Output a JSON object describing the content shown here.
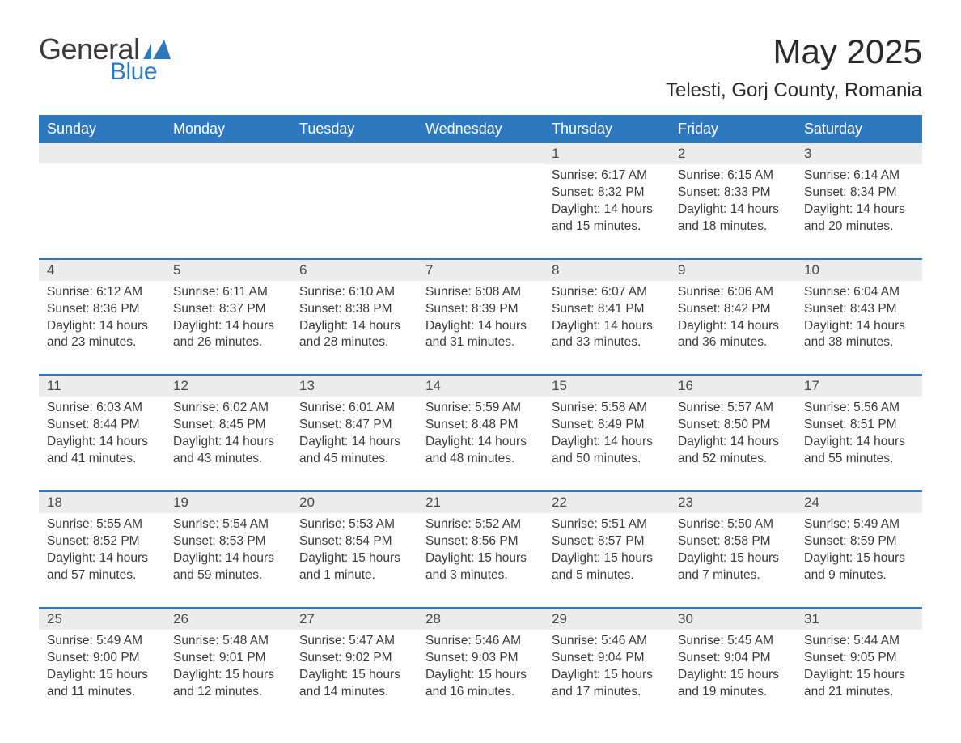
{
  "logo": {
    "text1": "General",
    "text2": "Blue",
    "color_general": "#3a3a3a",
    "color_blue": "#2e78c0",
    "tri_color": "#2e78c0"
  },
  "title": "May 2025",
  "location": "Telesti, Gorj County, Romania",
  "colors": {
    "header_bg": "#2e78c0",
    "header_text": "#ffffff",
    "row_accent": "#2e78c0",
    "daynum_bg": "#ececec",
    "text": "#3a3a3a",
    "bg": "#ffffff"
  },
  "fonts": {
    "title_size": 42,
    "location_size": 24,
    "header_size": 18,
    "daynum_size": 17,
    "body_size": 15.5
  },
  "day_labels": [
    "Sunday",
    "Monday",
    "Tuesday",
    "Wednesday",
    "Thursday",
    "Friday",
    "Saturday"
  ],
  "weeks": [
    [
      null,
      null,
      null,
      null,
      {
        "n": "1",
        "sr": "Sunrise: 6:17 AM",
        "ss": "Sunset: 8:32 PM",
        "dl": "Daylight: 14 hours and 15 minutes."
      },
      {
        "n": "2",
        "sr": "Sunrise: 6:15 AM",
        "ss": "Sunset: 8:33 PM",
        "dl": "Daylight: 14 hours and 18 minutes."
      },
      {
        "n": "3",
        "sr": "Sunrise: 6:14 AM",
        "ss": "Sunset: 8:34 PM",
        "dl": "Daylight: 14 hours and 20 minutes."
      }
    ],
    [
      {
        "n": "4",
        "sr": "Sunrise: 6:12 AM",
        "ss": "Sunset: 8:36 PM",
        "dl": "Daylight: 14 hours and 23 minutes."
      },
      {
        "n": "5",
        "sr": "Sunrise: 6:11 AM",
        "ss": "Sunset: 8:37 PM",
        "dl": "Daylight: 14 hours and 26 minutes."
      },
      {
        "n": "6",
        "sr": "Sunrise: 6:10 AM",
        "ss": "Sunset: 8:38 PM",
        "dl": "Daylight: 14 hours and 28 minutes."
      },
      {
        "n": "7",
        "sr": "Sunrise: 6:08 AM",
        "ss": "Sunset: 8:39 PM",
        "dl": "Daylight: 14 hours and 31 minutes."
      },
      {
        "n": "8",
        "sr": "Sunrise: 6:07 AM",
        "ss": "Sunset: 8:41 PM",
        "dl": "Daylight: 14 hours and 33 minutes."
      },
      {
        "n": "9",
        "sr": "Sunrise: 6:06 AM",
        "ss": "Sunset: 8:42 PM",
        "dl": "Daylight: 14 hours and 36 minutes."
      },
      {
        "n": "10",
        "sr": "Sunrise: 6:04 AM",
        "ss": "Sunset: 8:43 PM",
        "dl": "Daylight: 14 hours and 38 minutes."
      }
    ],
    [
      {
        "n": "11",
        "sr": "Sunrise: 6:03 AM",
        "ss": "Sunset: 8:44 PM",
        "dl": "Daylight: 14 hours and 41 minutes."
      },
      {
        "n": "12",
        "sr": "Sunrise: 6:02 AM",
        "ss": "Sunset: 8:45 PM",
        "dl": "Daylight: 14 hours and 43 minutes."
      },
      {
        "n": "13",
        "sr": "Sunrise: 6:01 AM",
        "ss": "Sunset: 8:47 PM",
        "dl": "Daylight: 14 hours and 45 minutes."
      },
      {
        "n": "14",
        "sr": "Sunrise: 5:59 AM",
        "ss": "Sunset: 8:48 PM",
        "dl": "Daylight: 14 hours and 48 minutes."
      },
      {
        "n": "15",
        "sr": "Sunrise: 5:58 AM",
        "ss": "Sunset: 8:49 PM",
        "dl": "Daylight: 14 hours and 50 minutes."
      },
      {
        "n": "16",
        "sr": "Sunrise: 5:57 AM",
        "ss": "Sunset: 8:50 PM",
        "dl": "Daylight: 14 hours and 52 minutes."
      },
      {
        "n": "17",
        "sr": "Sunrise: 5:56 AM",
        "ss": "Sunset: 8:51 PM",
        "dl": "Daylight: 14 hours and 55 minutes."
      }
    ],
    [
      {
        "n": "18",
        "sr": "Sunrise: 5:55 AM",
        "ss": "Sunset: 8:52 PM",
        "dl": "Daylight: 14 hours and 57 minutes."
      },
      {
        "n": "19",
        "sr": "Sunrise: 5:54 AM",
        "ss": "Sunset: 8:53 PM",
        "dl": "Daylight: 14 hours and 59 minutes."
      },
      {
        "n": "20",
        "sr": "Sunrise: 5:53 AM",
        "ss": "Sunset: 8:54 PM",
        "dl": "Daylight: 15 hours and 1 minute."
      },
      {
        "n": "21",
        "sr": "Sunrise: 5:52 AM",
        "ss": "Sunset: 8:56 PM",
        "dl": "Daylight: 15 hours and 3 minutes."
      },
      {
        "n": "22",
        "sr": "Sunrise: 5:51 AM",
        "ss": "Sunset: 8:57 PM",
        "dl": "Daylight: 15 hours and 5 minutes."
      },
      {
        "n": "23",
        "sr": "Sunrise: 5:50 AM",
        "ss": "Sunset: 8:58 PM",
        "dl": "Daylight: 15 hours and 7 minutes."
      },
      {
        "n": "24",
        "sr": "Sunrise: 5:49 AM",
        "ss": "Sunset: 8:59 PM",
        "dl": "Daylight: 15 hours and 9 minutes."
      }
    ],
    [
      {
        "n": "25",
        "sr": "Sunrise: 5:49 AM",
        "ss": "Sunset: 9:00 PM",
        "dl": "Daylight: 15 hours and 11 minutes."
      },
      {
        "n": "26",
        "sr": "Sunrise: 5:48 AM",
        "ss": "Sunset: 9:01 PM",
        "dl": "Daylight: 15 hours and 12 minutes."
      },
      {
        "n": "27",
        "sr": "Sunrise: 5:47 AM",
        "ss": "Sunset: 9:02 PM",
        "dl": "Daylight: 15 hours and 14 minutes."
      },
      {
        "n": "28",
        "sr": "Sunrise: 5:46 AM",
        "ss": "Sunset: 9:03 PM",
        "dl": "Daylight: 15 hours and 16 minutes."
      },
      {
        "n": "29",
        "sr": "Sunrise: 5:46 AM",
        "ss": "Sunset: 9:04 PM",
        "dl": "Daylight: 15 hours and 17 minutes."
      },
      {
        "n": "30",
        "sr": "Sunrise: 5:45 AM",
        "ss": "Sunset: 9:04 PM",
        "dl": "Daylight: 15 hours and 19 minutes."
      },
      {
        "n": "31",
        "sr": "Sunrise: 5:44 AM",
        "ss": "Sunset: 9:05 PM",
        "dl": "Daylight: 15 hours and 21 minutes."
      }
    ]
  ]
}
